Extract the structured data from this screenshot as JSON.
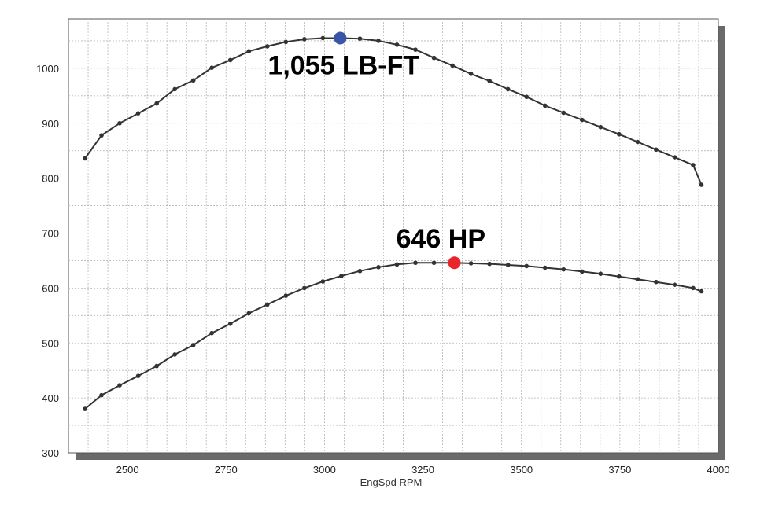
{
  "chart_data": {
    "type": "line",
    "title": "",
    "xlabel": "EngSpd  RPM",
    "ylabel": "",
    "xlim": [
      2350,
      4000
    ],
    "ylim": [
      300,
      1090
    ],
    "x_ticks": [
      2500,
      2750,
      3000,
      3250,
      3500,
      3750,
      4000
    ],
    "y_ticks": [
      300,
      400,
      500,
      600,
      700,
      800,
      900,
      1000
    ],
    "grid": true,
    "x": [
      2392,
      2434,
      2480,
      2527,
      2574,
      2620,
      2667,
      2714,
      2761,
      2808,
      2855,
      2902,
      2949,
      2996,
      3043,
      3090,
      3137,
      3184,
      3231,
      3278,
      3325,
      3372,
      3419,
      3466,
      3513,
      3560,
      3607,
      3654,
      3701,
      3748,
      3795,
      3842,
      3889,
      3936,
      3957
    ],
    "series": [
      {
        "name": "",
        "color": "#333333",
        "values": [
          836,
          878,
          900,
          918,
          936,
          962,
          978,
          1001,
          1015,
          1031,
          1040,
          1048,
          1053,
          1055,
          1055,
          1054,
          1050,
          1043,
          1034,
          1019,
          1005,
          990,
          977,
          962,
          948,
          932,
          919,
          906,
          893,
          880,
          866,
          852,
          838,
          824,
          788
        ]
      },
      {
        "name": "",
        "color": "#333333",
        "values": [
          380,
          405,
          423,
          440,
          458,
          479,
          496,
          518,
          535,
          554,
          570,
          586,
          600,
          612,
          622,
          631,
          638,
          643,
          646,
          646,
          646,
          645,
          644,
          642,
          640,
          637,
          634,
          630,
          626,
          621,
          616,
          611,
          606,
          600,
          594
        ]
      }
    ],
    "annotations": [
      {
        "text": "1,055 LB-FT",
        "x": 3040,
        "y": 1055,
        "marker_color": "#3a55a8"
      },
      {
        "text": "646 HP",
        "x": 3330,
        "y": 646,
        "marker_color": "#e8262a"
      }
    ]
  }
}
